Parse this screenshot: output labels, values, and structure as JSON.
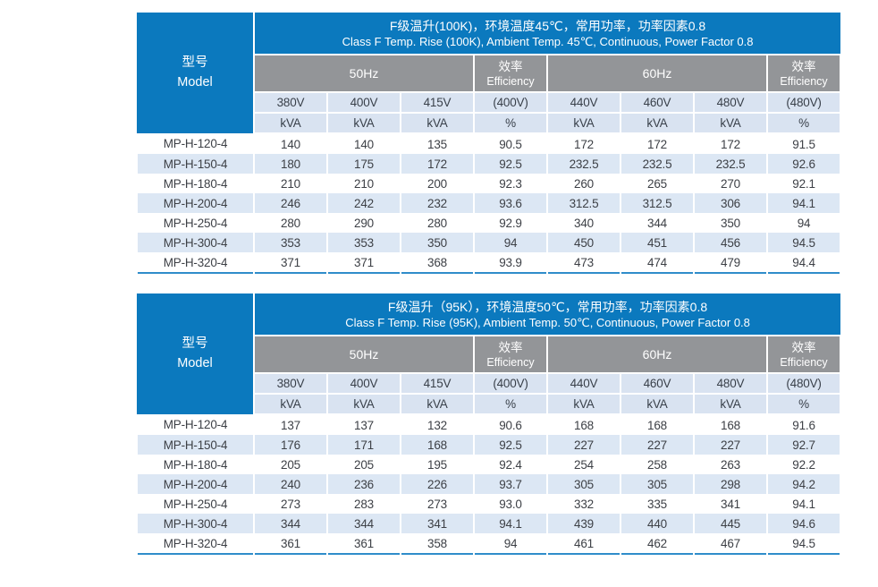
{
  "page": {
    "background": "#ffffff"
  },
  "colors": {
    "header_blue": "#0b79be",
    "band_gray": "#939598",
    "subheader_light_blue": "#d9e3f1",
    "row_stripe_blue": "#dce7f4",
    "bottom_line_blue": "#2f8dca",
    "body_text": "#3d4046"
  },
  "tables": [
    {
      "title_zh": "F级温升(100K)，环境温度45℃，常用功率，功率因素0.8",
      "title_en": "Class F Temp. Rise (100K), Ambient Temp. 45℃, Continuous, Power Factor 0.8",
      "model_header": {
        "zh": "型号",
        "en": "Model"
      },
      "groups": {
        "freq50": "50Hz",
        "freq60": "60Hz",
        "eff_zh": "效率",
        "eff_en": "Efficiency"
      },
      "voltage_headers": [
        "380V",
        "400V",
        "415V",
        "(400V)",
        "440V",
        "460V",
        "480V",
        "(480V)"
      ],
      "unit_headers": [
        "kVA",
        "kVA",
        "kVA",
        "%",
        "kVA",
        "kVA",
        "kVA",
        "%"
      ],
      "rows": [
        {
          "model": "MP-H-120-4",
          "values": [
            "140",
            "140",
            "135",
            "90.5",
            "172",
            "172",
            "172",
            "91.5"
          ]
        },
        {
          "model": "MP-H-150-4",
          "values": [
            "180",
            "175",
            "172",
            "92.5",
            "232.5",
            "232.5",
            "232.5",
            "92.6"
          ]
        },
        {
          "model": "MP-H-180-4",
          "values": [
            "210",
            "210",
            "200",
            "92.3",
            "260",
            "265",
            "270",
            "92.1"
          ]
        },
        {
          "model": "MP-H-200-4",
          "values": [
            "246",
            "242",
            "232",
            "93.6",
            "312.5",
            "312.5",
            "306",
            "94.1"
          ]
        },
        {
          "model": "MP-H-250-4",
          "values": [
            "280",
            "290",
            "280",
            "92.9",
            "340",
            "344",
            "350",
            "94"
          ]
        },
        {
          "model": "MP-H-300-4",
          "values": [
            "353",
            "353",
            "350",
            "94",
            "450",
            "451",
            "456",
            "94.5"
          ]
        },
        {
          "model": "MP-H-320-4",
          "values": [
            "371",
            "371",
            "368",
            "93.9",
            "473",
            "474",
            "479",
            "94.4"
          ]
        }
      ]
    },
    {
      "title_zh": "F级温升（95K），环境温度50℃，常用功率，功率因素0.8",
      "title_en": "Class F Temp. Rise (95K), Ambient Temp. 50℃, Continuous, Power Factor 0.8",
      "model_header": {
        "zh": "型号",
        "en": "Model"
      },
      "groups": {
        "freq50": "50Hz",
        "freq60": "60Hz",
        "eff_zh": "效率",
        "eff_en": "Efficiency"
      },
      "voltage_headers": [
        "380V",
        "400V",
        "415V",
        "(400V)",
        "440V",
        "460V",
        "480V",
        "(480V)"
      ],
      "unit_headers": [
        "kVA",
        "kVA",
        "kVA",
        "%",
        "kVA",
        "kVA",
        "kVA",
        "%"
      ],
      "rows": [
        {
          "model": "MP-H-120-4",
          "values": [
            "137",
            "137",
            "132",
            "90.6",
            "168",
            "168",
            "168",
            "91.6"
          ]
        },
        {
          "model": "MP-H-150-4",
          "values": [
            "176",
            "171",
            "168",
            "92.5",
            "227",
            "227",
            "227",
            "92.7"
          ]
        },
        {
          "model": "MP-H-180-4",
          "values": [
            "205",
            "205",
            "195",
            "92.4",
            "254",
            "258",
            "263",
            "92.2"
          ]
        },
        {
          "model": "MP-H-200-4",
          "values": [
            "240",
            "236",
            "226",
            "93.7",
            "305",
            "305",
            "298",
            "94.2"
          ]
        },
        {
          "model": "MP-H-250-4",
          "values": [
            "273",
            "283",
            "273",
            "93.0",
            "332",
            "335",
            "341",
            "94.1"
          ]
        },
        {
          "model": "MP-H-300-4",
          "values": [
            "344",
            "344",
            "341",
            "94.1",
            "439",
            "440",
            "445",
            "94.6"
          ]
        },
        {
          "model": "MP-H-320-4",
          "values": [
            "361",
            "361",
            "358",
            "94",
            "461",
            "462",
            "467",
            "94.5"
          ]
        }
      ]
    }
  ]
}
